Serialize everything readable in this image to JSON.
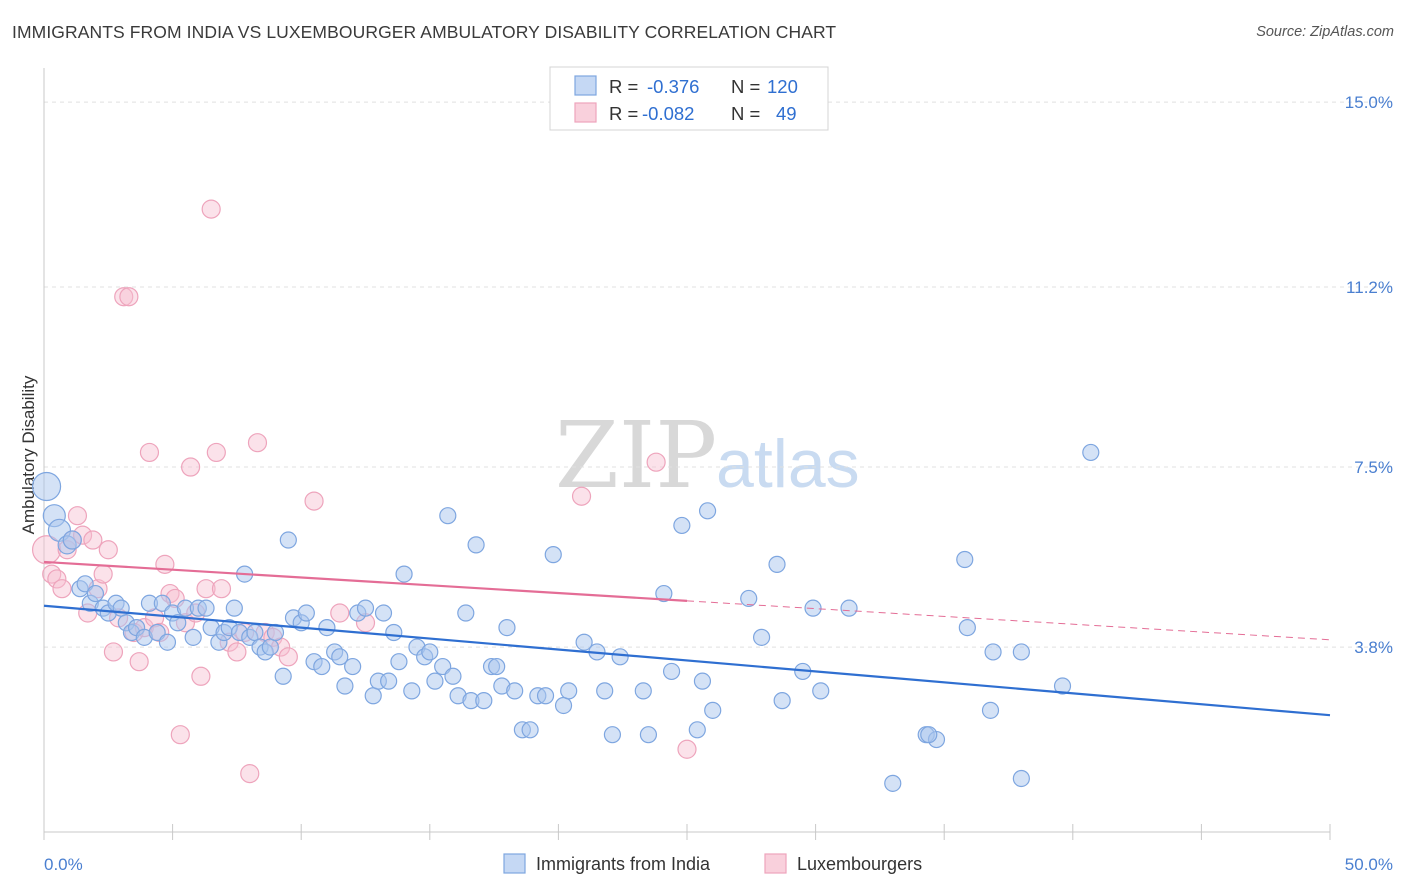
{
  "header": {
    "title": "IMMIGRANTS FROM INDIA VS LUXEMBOURGER AMBULATORY DISABILITY CORRELATION CHART",
    "source": "Source: ZipAtlas.com"
  },
  "watermark": {
    "zip": "ZIP",
    "atlas": "atlas"
  },
  "legend_box": {
    "rows": [
      {
        "r_label": "R =",
        "r_value": "-0.376",
        "n_label": "N =",
        "n_value": "120",
        "color": "#6f9fe0"
      },
      {
        "r_label": "R =",
        "r_value": "-0.082",
        "n_label": "N =",
        "n_value": "49",
        "color": "#f09ab6"
      }
    ]
  },
  "bottom_legend": {
    "items": [
      {
        "label": "Immigrants from India",
        "color": "#6f9fe0"
      },
      {
        "label": "Luxembourgers",
        "color": "#f09ab6"
      }
    ]
  },
  "colors": {
    "blue_fill": "#a9c6ee",
    "blue_stroke": "#7ea6e0",
    "blue_line": "#2f6fd1",
    "pink_fill": "#f6bfd0",
    "pink_stroke": "#eea4bc",
    "pink_line": "#e46d96",
    "grid": "#e0e0e0",
    "tick_text": "#4a7fd0"
  },
  "chart_data": {
    "type": "scatter",
    "title": "IMMIGRANTS FROM INDIA VS LUXEMBOURGER AMBULATORY DISABILITY CORRELATION CHART",
    "xlabel": "",
    "ylabel": "Ambulatory Disability",
    "xlim": [
      0,
      50
    ],
    "ylim": [
      0,
      15.7
    ],
    "x_tick_labels": [
      {
        "value": 0,
        "label": "0.0%"
      },
      {
        "value": 50,
        "label": "50.0%"
      }
    ],
    "y_ticks": [
      {
        "value": 3.8,
        "label": "3.8%"
      },
      {
        "value": 7.5,
        "label": "7.5%"
      },
      {
        "value": 11.2,
        "label": "11.2%"
      },
      {
        "value": 15.0,
        "label": "15.0%"
      }
    ],
    "x_minor_ticks": [
      0,
      5,
      10,
      15,
      20,
      25,
      30,
      35,
      40,
      45,
      50
    ],
    "grid": true,
    "legend_position": "top-center",
    "series": [
      {
        "name": "Immigrants from India",
        "color": "#6f9fe0",
        "r": -0.376,
        "n": 120,
        "trend": {
          "x0": 0,
          "y0": 4.65,
          "x1": 50,
          "y1": 2.4
        },
        "points": [
          [
            0.1,
            7.1,
            14
          ],
          [
            0.4,
            6.5,
            11
          ],
          [
            0.6,
            6.2,
            11
          ],
          [
            0.9,
            5.9,
            9
          ],
          [
            1.1,
            6.0,
            9
          ],
          [
            1.4,
            5.0,
            8
          ],
          [
            1.6,
            5.1,
            8
          ],
          [
            1.8,
            4.7,
            8
          ],
          [
            2.0,
            4.9,
            8
          ],
          [
            2.3,
            4.6,
            8
          ],
          [
            2.5,
            4.5,
            8
          ],
          [
            2.8,
            4.7,
            8
          ],
          [
            3.0,
            4.6,
            8
          ],
          [
            3.2,
            4.3,
            8
          ],
          [
            3.4,
            4.1,
            8
          ],
          [
            3.6,
            4.2,
            8
          ],
          [
            3.9,
            4.0,
            8
          ],
          [
            4.1,
            4.7,
            8
          ],
          [
            4.4,
            4.1,
            8
          ],
          [
            4.6,
            4.7,
            8
          ],
          [
            4.8,
            3.9,
            8
          ],
          [
            5.0,
            4.5,
            8
          ],
          [
            5.2,
            4.3,
            8
          ],
          [
            5.5,
            4.6,
            8
          ],
          [
            5.8,
            4.0,
            8
          ],
          [
            6.0,
            4.6,
            8
          ],
          [
            6.3,
            4.6,
            8
          ],
          [
            6.5,
            4.2,
            8
          ],
          [
            6.8,
            3.9,
            8
          ],
          [
            7.0,
            4.1,
            8
          ],
          [
            7.2,
            4.2,
            8
          ],
          [
            7.4,
            4.6,
            8
          ],
          [
            7.6,
            4.1,
            8
          ],
          [
            7.8,
            5.3,
            8
          ],
          [
            8.0,
            4.0,
            8
          ],
          [
            8.2,
            4.1,
            8
          ],
          [
            8.4,
            3.8,
            8
          ],
          [
            8.6,
            3.7,
            8
          ],
          [
            8.8,
            3.8,
            8
          ],
          [
            9.0,
            4.1,
            8
          ],
          [
            9.3,
            3.2,
            8
          ],
          [
            9.5,
            6.0,
            8
          ],
          [
            9.7,
            4.4,
            8
          ],
          [
            10.0,
            4.3,
            8
          ],
          [
            10.2,
            4.5,
            8
          ],
          [
            10.5,
            3.5,
            8
          ],
          [
            10.8,
            3.4,
            8
          ],
          [
            11.0,
            4.2,
            8
          ],
          [
            11.3,
            3.7,
            8
          ],
          [
            11.5,
            3.6,
            8
          ],
          [
            11.7,
            3.0,
            8
          ],
          [
            12.0,
            3.4,
            8
          ],
          [
            12.2,
            4.5,
            8
          ],
          [
            12.5,
            4.6,
            8
          ],
          [
            12.8,
            2.8,
            8
          ],
          [
            13.0,
            3.1,
            8
          ],
          [
            13.2,
            4.5,
            8
          ],
          [
            13.4,
            3.1,
            8
          ],
          [
            13.6,
            4.1,
            8
          ],
          [
            13.8,
            3.5,
            8
          ],
          [
            14.0,
            5.3,
            8
          ],
          [
            14.3,
            2.9,
            8
          ],
          [
            14.5,
            3.8,
            8
          ],
          [
            14.8,
            3.6,
            8
          ],
          [
            15.0,
            3.7,
            8
          ],
          [
            15.2,
            3.1,
            8
          ],
          [
            15.5,
            3.4,
            8
          ],
          [
            15.7,
            6.5,
            8
          ],
          [
            15.9,
            3.2,
            8
          ],
          [
            16.1,
            2.8,
            8
          ],
          [
            16.4,
            4.5,
            8
          ],
          [
            16.6,
            2.7,
            8
          ],
          [
            16.8,
            5.9,
            8
          ],
          [
            17.1,
            2.7,
            8
          ],
          [
            17.4,
            3.4,
            8
          ],
          [
            17.6,
            3.4,
            8
          ],
          [
            17.8,
            3.0,
            8
          ],
          [
            18.0,
            4.2,
            8
          ],
          [
            18.3,
            2.9,
            8
          ],
          [
            18.6,
            2.1,
            8
          ],
          [
            18.9,
            2.1,
            8
          ],
          [
            19.2,
            2.8,
            8
          ],
          [
            19.5,
            2.8,
            8
          ],
          [
            19.8,
            5.7,
            8
          ],
          [
            20.2,
            2.6,
            8
          ],
          [
            20.4,
            2.9,
            8
          ],
          [
            21.0,
            3.9,
            8
          ],
          [
            21.5,
            3.7,
            8
          ],
          [
            21.8,
            2.9,
            8
          ],
          [
            22.4,
            3.6,
            8
          ],
          [
            22.1,
            2.0,
            8
          ],
          [
            23.3,
            2.9,
            8
          ],
          [
            23.5,
            2.0,
            8
          ],
          [
            24.1,
            4.9,
            8
          ],
          [
            24.4,
            3.3,
            8
          ],
          [
            24.8,
            6.3,
            8
          ],
          [
            25.4,
            2.1,
            8
          ],
          [
            25.6,
            3.1,
            8
          ],
          [
            25.8,
            6.6,
            8
          ],
          [
            26.0,
            2.5,
            8
          ],
          [
            27.4,
            4.8,
            8
          ],
          [
            27.9,
            4.0,
            8
          ],
          [
            28.5,
            5.5,
            8
          ],
          [
            28.7,
            2.7,
            8
          ],
          [
            29.5,
            3.3,
            8
          ],
          [
            29.9,
            4.6,
            8
          ],
          [
            30.2,
            2.9,
            8
          ],
          [
            31.3,
            4.6,
            8
          ],
          [
            33.0,
            1.0,
            8
          ],
          [
            34.3,
            2.0,
            8
          ],
          [
            34.7,
            1.9,
            8
          ],
          [
            34.4,
            2.0,
            8
          ],
          [
            35.8,
            5.6,
            8
          ],
          [
            35.9,
            4.2,
            8
          ],
          [
            36.8,
            2.5,
            8
          ],
          [
            36.9,
            3.7,
            8
          ],
          [
            38.0,
            1.1,
            8
          ],
          [
            39.6,
            3.0,
            8
          ],
          [
            40.7,
            7.8,
            8
          ],
          [
            38.0,
            3.7,
            8
          ]
        ]
      },
      {
        "name": "Luxembourgers",
        "color": "#f09ab6",
        "r": -0.082,
        "n": 49,
        "trend": {
          "x0": 0,
          "y0": 5.55,
          "x1": 25,
          "y1": 4.75,
          "dash_to_x": 50,
          "dash_to_y": 3.95
        },
        "points": [
          [
            0.1,
            5.8,
            14
          ],
          [
            0.3,
            5.3,
            9
          ],
          [
            0.5,
            5.2,
            9
          ],
          [
            0.7,
            5.0,
            9
          ],
          [
            0.9,
            5.8,
            9
          ],
          [
            1.1,
            6.0,
            9
          ],
          [
            1.3,
            6.5,
            9
          ],
          [
            1.5,
            6.1,
            9
          ],
          [
            1.7,
            4.5,
            9
          ],
          [
            1.9,
            6.0,
            9
          ],
          [
            2.1,
            5.0,
            9
          ],
          [
            2.3,
            5.3,
            9
          ],
          [
            2.5,
            5.8,
            9
          ],
          [
            2.7,
            3.7,
            9
          ],
          [
            2.9,
            4.4,
            9
          ],
          [
            3.1,
            11.0,
            9
          ],
          [
            3.3,
            11.0,
            9
          ],
          [
            3.5,
            4.1,
            9
          ],
          [
            3.7,
            3.5,
            9
          ],
          [
            3.9,
            4.2,
            9
          ],
          [
            4.1,
            7.8,
            9
          ],
          [
            4.3,
            4.4,
            9
          ],
          [
            4.5,
            4.1,
            9
          ],
          [
            4.7,
            5.5,
            9
          ],
          [
            4.9,
            4.9,
            9
          ],
          [
            5.1,
            4.8,
            9
          ],
          [
            5.3,
            2.0,
            9
          ],
          [
            5.5,
            4.3,
            9
          ],
          [
            5.7,
            7.5,
            9
          ],
          [
            5.9,
            4.5,
            9
          ],
          [
            6.1,
            3.2,
            9
          ],
          [
            6.3,
            5.0,
            9
          ],
          [
            6.5,
            12.8,
            9
          ],
          [
            6.7,
            7.8,
            9
          ],
          [
            6.9,
            5.0,
            9
          ],
          [
            7.2,
            3.9,
            9
          ],
          [
            7.5,
            3.7,
            9
          ],
          [
            7.8,
            4.1,
            9
          ],
          [
            8.0,
            1.2,
            9
          ],
          [
            8.3,
            8.0,
            9
          ],
          [
            8.6,
            4.1,
            9
          ],
          [
            8.9,
            4.0,
            9
          ],
          [
            9.2,
            3.8,
            9
          ],
          [
            9.5,
            3.6,
            9
          ],
          [
            10.5,
            6.8,
            9
          ],
          [
            11.5,
            4.5,
            9
          ],
          [
            12.5,
            4.3,
            9
          ],
          [
            23.8,
            7.6,
            9
          ],
          [
            20.9,
            6.9,
            9
          ],
          [
            25.0,
            1.7,
            9
          ]
        ]
      }
    ]
  }
}
